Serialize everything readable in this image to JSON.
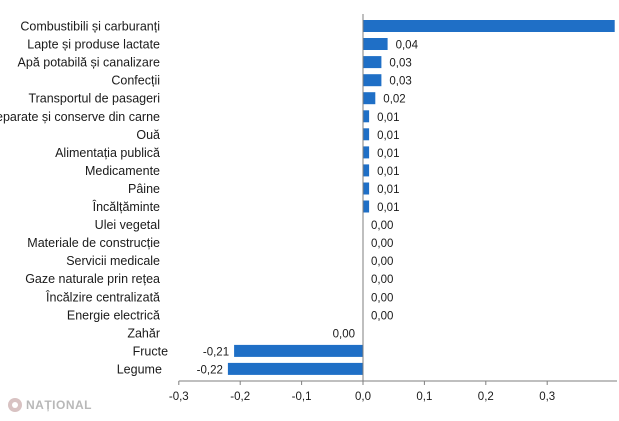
{
  "watermark": {
    "text": "NAȚIONAL"
  },
  "colors": {
    "bar": "#1f6fc6",
    "axis": "#7f7f7f"
  },
  "chart_data": {
    "type": "bar",
    "orientation": "horizontal",
    "categories": [
      "Combustibili și carburanți",
      "Lapte și produse lactate",
      "Apă potabilă și canalizare",
      "Confecții",
      "Transportul de pasageri",
      "Carne, preparate și conserve din carne",
      "Ouă",
      "Alimentația publică",
      "Medicamente",
      "Pâine",
      "Încălțăminte",
      "Ulei vegetal",
      "Materiale de construcție",
      "Servicii medicale",
      "Gaze naturale prin rețea",
      "Încălzire centralizată",
      "Energie electrică",
      "Zahăr",
      "Fructe",
      "Legume"
    ],
    "values": [
      0.41,
      0.04,
      0.03,
      0.03,
      0.02,
      0.01,
      0.01,
      0.01,
      0.01,
      0.01,
      0.01,
      0.0,
      0.0,
      0.0,
      0.0,
      0.0,
      0.0,
      0.0,
      -0.21,
      -0.22
    ],
    "value_labels": [
      "",
      "0,04",
      "0,03",
      "0,03",
      "0,02",
      "0,01",
      "0,01",
      "0,01",
      "0,01",
      "0,01",
      "0,01",
      "0,00",
      "0,00",
      "0,00",
      "0,00",
      "0,00",
      "0,00",
      "0,00",
      "-0,21",
      "-0,22"
    ],
    "xlim": [
      -0.3,
      0.4
    ],
    "x_ticks": [
      -0.3,
      -0.2,
      -0.1,
      0.0,
      0.1,
      0.2,
      0.3
    ],
    "x_tick_labels": [
      "-0,3",
      "-0,2",
      "-0,1",
      "0,0",
      "0,1",
      "0,2",
      "0,3"
    ],
    "title": "",
    "xlabel": "",
    "ylabel": "",
    "grid": false,
    "legend": "none"
  }
}
